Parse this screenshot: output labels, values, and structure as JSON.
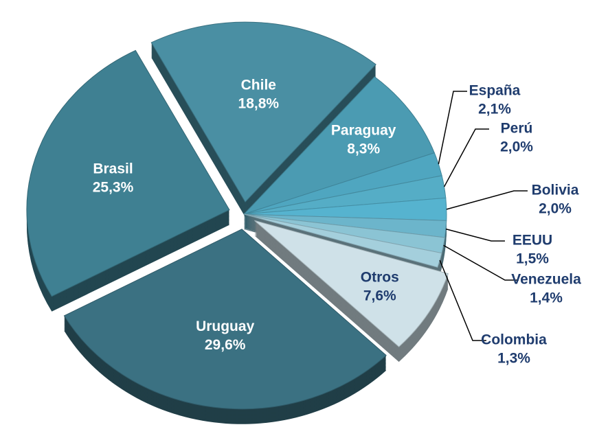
{
  "chart_data": {
    "type": "pie",
    "categories": [
      "Chile",
      "Paraguay",
      "España",
      "Perú",
      "Bolivia",
      "EEUU",
      "Venezuela",
      "Colombia",
      "Otros",
      "Uruguay",
      "Brasil"
    ],
    "values": [
      18.8,
      8.3,
      2.1,
      2.0,
      2.0,
      1.5,
      1.4,
      1.3,
      7.6,
      29.6,
      25.3
    ],
    "value_labels": [
      "18,8%",
      "8,3%",
      "2,1%",
      "2,0%",
      "2,0%",
      "1,5%",
      "1,4%",
      "1,3%",
      "7,6%",
      "29,6%",
      "25,3%"
    ],
    "colors": [
      "#4a8fa3",
      "#4b9bb2",
      "#4fa6c0",
      "#55adc6",
      "#56b3cf",
      "#6cb5cb",
      "#8bc4d4",
      "#a4cfdc",
      "#cfe1e8",
      "#3b7182",
      "#3f8092"
    ]
  }
}
